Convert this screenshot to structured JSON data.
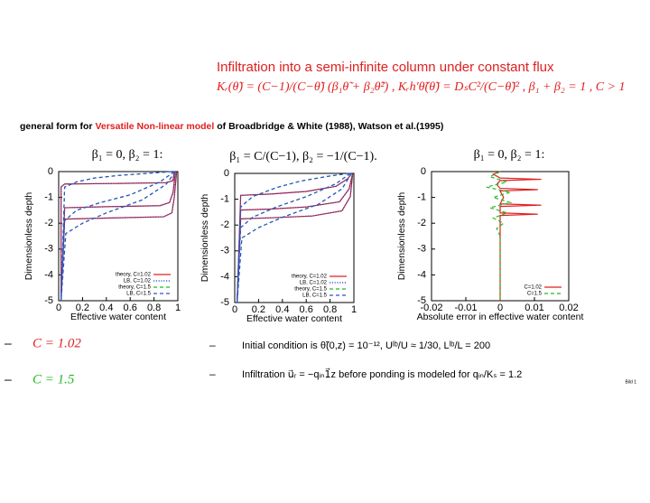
{
  "title": "Infiltration into a semi-infinite column under constant flux",
  "equation": "Kᵣ(θ̃) = (C−1)/(C−θ̃) (β₁θ̃ + β₂θ̃²) ,  Kᵣh′θ̃(θ̃) = DₛC²/(C−θ̃)² ,  β₁ + β₂ = 1 ,  C > 1",
  "subtitle": {
    "before": "general form for ",
    "highlight": "Versatile Non-linear model",
    "after": " of Broadbridge & White (1988), Watson et al.(1995)"
  },
  "chart_data": [
    {
      "type": "line",
      "title": "β₁ = 0, β₂ = 1:",
      "xlabel": "Effective water content",
      "ylabel": "Dimensionless depth",
      "xlim": [
        0,
        1
      ],
      "ylim": [
        -5,
        0
      ],
      "xticks": [
        0,
        0.2,
        0.4,
        0.6,
        0.8,
        1
      ],
      "yticks": [
        0,
        -1,
        -2,
        -3,
        -4,
        -5
      ],
      "legend": "lower right",
      "series": [
        {
          "name": "theory, C=1.02",
          "color": "#e02020",
          "dash": "solid",
          "curves": [
            {
              "x": [
                0.97,
                0.96,
                0.9,
                0.5,
                0.05,
                0.02,
                0.02
              ],
              "y": [
                0,
                -0.35,
                -0.43,
                -0.46,
                -0.48,
                -0.6,
                -5
              ]
            },
            {
              "x": [
                0.98,
                0.96,
                0.93,
                0.85,
                0.4,
                0.05,
                0.02
              ],
              "y": [
                0,
                -0.8,
                -1.2,
                -1.32,
                -1.36,
                -1.4,
                -5
              ]
            },
            {
              "x": [
                0.99,
                0.97,
                0.95,
                0.88,
                0.4,
                0.05,
                0.02
              ],
              "y": [
                0,
                -1.0,
                -1.6,
                -1.75,
                -1.8,
                -1.84,
                -5
              ]
            }
          ]
        },
        {
          "name": "LB, C=1.02",
          "color": "#2040c0",
          "dash": "dotted",
          "curves": [
            {
              "x": [
                0.97,
                0.96,
                0.9,
                0.5,
                0.05,
                0.02,
                0.02
              ],
              "y": [
                0,
                -0.35,
                -0.43,
                -0.46,
                -0.48,
                -0.6,
                -5
              ]
            },
            {
              "x": [
                0.98,
                0.96,
                0.93,
                0.85,
                0.4,
                0.05,
                0.02
              ],
              "y": [
                0,
                -0.8,
                -1.2,
                -1.32,
                -1.36,
                -1.4,
                -5
              ]
            },
            {
              "x": [
                0.99,
                0.97,
                0.95,
                0.88,
                0.4,
                0.05,
                0.02
              ],
              "y": [
                0,
                -1.0,
                -1.6,
                -1.75,
                -1.8,
                -1.84,
                -5
              ]
            }
          ]
        },
        {
          "name": "theory, C=1.5",
          "color": "#22bb22",
          "dash": "dashed",
          "curves": [
            {
              "x": [
                0.95,
                0.8,
                0.5,
                0.3,
                0.15,
                0.05,
                0.02
              ],
              "y": [
                0,
                -0.05,
                -0.15,
                -0.25,
                -0.4,
                -0.6,
                -5
              ]
            },
            {
              "x": [
                0.97,
                0.85,
                0.6,
                0.35,
                0.15,
                0.05,
                0.02
              ],
              "y": [
                0,
                -0.4,
                -0.9,
                -1.2,
                -1.5,
                -1.9,
                -5
              ]
            },
            {
              "x": [
                0.98,
                0.9,
                0.7,
                0.4,
                0.2,
                0.06,
                0.02
              ],
              "y": [
                0,
                -0.5,
                -1.1,
                -1.6,
                -2.0,
                -2.4,
                -5
              ]
            }
          ]
        },
        {
          "name": "LB, C=1.5",
          "color": "#3050d0",
          "dash": "dashed",
          "curves": [
            {
              "x": [
                0.95,
                0.8,
                0.5,
                0.3,
                0.15,
                0.05,
                0.02
              ],
              "y": [
                0,
                -0.05,
                -0.15,
                -0.25,
                -0.4,
                -0.6,
                -5
              ]
            },
            {
              "x": [
                0.97,
                0.85,
                0.6,
                0.35,
                0.15,
                0.05,
                0.02
              ],
              "y": [
                0,
                -0.4,
                -0.9,
                -1.2,
                -1.5,
                -1.9,
                -5
              ]
            },
            {
              "x": [
                0.98,
                0.9,
                0.7,
                0.4,
                0.2,
                0.06,
                0.02
              ],
              "y": [
                0,
                -0.5,
                -1.1,
                -1.6,
                -2.0,
                -2.4,
                -5
              ]
            }
          ]
        }
      ]
    },
    {
      "type": "line",
      "title": "β₁ = C/(C−1), β₂ = −1/(C−1).",
      "xlabel": "Effective water content",
      "ylabel": "Dimensionless depth",
      "xlim": [
        0,
        1
      ],
      "ylim": [
        -5,
        0
      ],
      "xticks": [
        0,
        0.2,
        0.4,
        0.6,
        0.8,
        1
      ],
      "yticks": [
        0,
        -1,
        -2,
        -3,
        -4,
        -5
      ],
      "legend": "lower right",
      "series": [
        {
          "name": "theory, C=1.02",
          "color": "#e02020",
          "dash": "solid",
          "curves": [
            {
              "x": [
                0.98,
                0.95,
                0.85,
                0.6,
                0.3,
                0.05,
                0.02
              ],
              "y": [
                0,
                -0.2,
                -0.5,
                -0.7,
                -0.8,
                -0.85,
                -5
              ]
            },
            {
              "x": [
                0.99,
                0.96,
                0.88,
                0.6,
                0.3,
                0.05,
                0.02
              ],
              "y": [
                0,
                -0.6,
                -1.1,
                -1.3,
                -1.38,
                -1.42,
                -5
              ]
            },
            {
              "x": [
                0.99,
                0.97,
                0.9,
                0.65,
                0.3,
                0.05,
                0.02
              ],
              "y": [
                0,
                -0.9,
                -1.45,
                -1.65,
                -1.72,
                -1.76,
                -5
              ]
            }
          ]
        },
        {
          "name": "LB, C=1.02",
          "color": "#2040c0",
          "dash": "dotted",
          "curves": [
            {
              "x": [
                0.98,
                0.95,
                0.85,
                0.6,
                0.3,
                0.05,
                0.02
              ],
              "y": [
                0,
                -0.2,
                -0.5,
                -0.7,
                -0.8,
                -0.85,
                -5
              ]
            },
            {
              "x": [
                0.99,
                0.96,
                0.88,
                0.6,
                0.3,
                0.05,
                0.02
              ],
              "y": [
                0,
                -0.6,
                -1.1,
                -1.3,
                -1.38,
                -1.42,
                -5
              ]
            },
            {
              "x": [
                0.99,
                0.97,
                0.9,
                0.65,
                0.3,
                0.05,
                0.02
              ],
              "y": [
                0,
                -0.9,
                -1.45,
                -1.65,
                -1.72,
                -1.76,
                -5
              ]
            }
          ]
        },
        {
          "name": "theory, C=1.5",
          "color": "#22bb22",
          "dash": "dashed",
          "curves": [
            {
              "x": [
                0.96,
                0.8,
                0.55,
                0.35,
                0.15,
                0.05,
                0.02
              ],
              "y": [
                0,
                -0.1,
                -0.3,
                -0.55,
                -0.9,
                -1.3,
                -5
              ]
            },
            {
              "x": [
                0.97,
                0.85,
                0.6,
                0.35,
                0.15,
                0.05,
                0.02
              ],
              "y": [
                0,
                -0.4,
                -0.9,
                -1.3,
                -1.7,
                -2.1,
                -5
              ]
            },
            {
              "x": [
                0.98,
                0.9,
                0.7,
                0.4,
                0.2,
                0.06,
                0.02
              ],
              "y": [
                0,
                -0.6,
                -1.2,
                -1.7,
                -2.1,
                -2.5,
                -5
              ]
            }
          ]
        },
        {
          "name": "LB, C=1.5",
          "color": "#3050d0",
          "dash": "dashed",
          "curves": [
            {
              "x": [
                0.96,
                0.8,
                0.55,
                0.35,
                0.15,
                0.05,
                0.02
              ],
              "y": [
                0,
                -0.1,
                -0.3,
                -0.55,
                -0.9,
                -1.3,
                -5
              ]
            },
            {
              "x": [
                0.97,
                0.85,
                0.6,
                0.35,
                0.15,
                0.05,
                0.02
              ],
              "y": [
                0,
                -0.4,
                -0.9,
                -1.3,
                -1.7,
                -2.1,
                -5
              ]
            },
            {
              "x": [
                0.98,
                0.9,
                0.7,
                0.4,
                0.2,
                0.06,
                0.02
              ],
              "y": [
                0,
                -0.6,
                -1.2,
                -1.7,
                -2.1,
                -2.5,
                -5
              ]
            }
          ]
        }
      ]
    },
    {
      "type": "line",
      "title": "β₁ = 0, β₂ = 1:",
      "xlabel": "Absolute error in  effective water content",
      "ylabel": "Dimensionless depth",
      "xlim": [
        -0.02,
        0.02
      ],
      "ylim": [
        -5,
        0
      ],
      "xticks": [
        -0.02,
        -0.01,
        0,
        0.01,
        0.02
      ],
      "yticks": [
        0,
        -1,
        -2,
        -3,
        -4,
        -5
      ],
      "legend": "lower right",
      "series": [
        {
          "name": "C=1.02",
          "color": "#e02020",
          "dash": "solid",
          "curves": [
            {
              "x": [
                0,
                -0.002,
                0,
                0.012,
                0,
                -0.001,
                0,
                0.011,
                0,
                0.001,
                0,
                0.012,
                0,
                0,
                0.011,
                0,
                0,
                0,
                0
              ],
              "y": [
                0,
                -0.1,
                -0.25,
                -0.3,
                -0.35,
                -0.5,
                -0.65,
                -0.7,
                -0.75,
                -1.0,
                -1.25,
                -1.3,
                -1.35,
                -1.6,
                -1.65,
                -1.7,
                -1.75,
                -2.0,
                -5
              ]
            }
          ]
        },
        {
          "name": "C=1.5",
          "color": "#22bb22",
          "dash": "dashed",
          "curves": [
            {
              "x": [
                0,
                -0.003,
                0.002,
                -0.004,
                0.003,
                -0.002,
                0.003,
                -0.003,
                0.002,
                -0.002,
                0.001,
                -0.001,
                0,
                0
              ],
              "y": [
                0,
                -0.2,
                -0.4,
                -0.6,
                -0.8,
                -1.0,
                -1.2,
                -1.4,
                -1.6,
                -1.8,
                -2.0,
                -2.2,
                -2.5,
                -5
              ]
            }
          ]
        }
      ]
    }
  ],
  "bullet_marker": "–",
  "bullets_left": [
    "C = 1.02",
    "C = 1.5"
  ],
  "bullets_right": [
    "Initial condition is θ̃(0,z) = 10⁻¹², Uˡᵇ/U ≈ 1/30, Lˡᵇ/L = 200",
    "Infiltration u⃗ᵣ = −qᵢₙ1⃗z before ponding is modeled for qᵢₙ/Kₛ = 1.2"
  ],
  "footer": "Bild 1"
}
